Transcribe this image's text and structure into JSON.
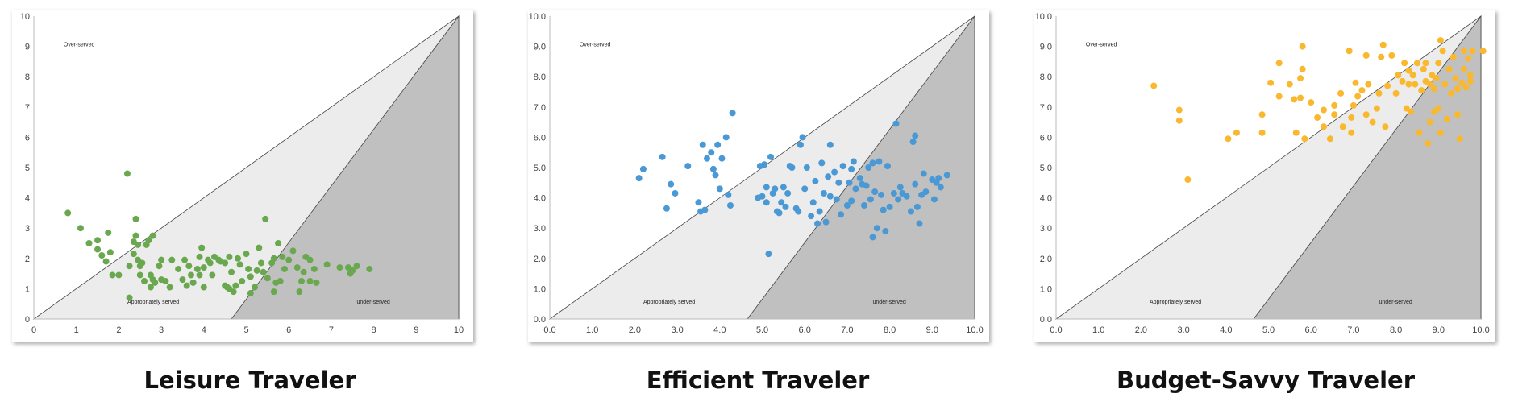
{
  "chart_data": [
    {
      "type": "scatter",
      "title": "Leisure Traveler",
      "color": "#6aa84f",
      "xlim": [
        0,
        10
      ],
      "ylim": [
        0,
        10
      ],
      "xticks": [
        "0",
        "1",
        "2",
        "3",
        "4",
        "5",
        "6",
        "7",
        "8",
        "9",
        "10"
      ],
      "yticks": [
        "0",
        "1",
        "2",
        "3",
        "4",
        "5",
        "6",
        "7",
        "8",
        "9",
        "10"
      ],
      "grid": false,
      "regions": [
        {
          "label": "Over-served",
          "color": "#ffffff"
        },
        {
          "label": "Appropriately served",
          "color": "#ececec"
        },
        {
          "label": "under-served",
          "color": "#c0c0c0"
        }
      ],
      "points": [
        [
          0.8,
          3.5
        ],
        [
          1.1,
          3.0
        ],
        [
          1.3,
          2.5
        ],
        [
          1.5,
          2.3
        ],
        [
          1.6,
          2.1
        ],
        [
          1.5,
          2.6
        ],
        [
          1.7,
          1.9
        ],
        [
          1.75,
          2.85
        ],
        [
          1.8,
          2.2
        ],
        [
          1.85,
          1.45
        ],
        [
          2.0,
          1.45
        ],
        [
          2.2,
          4.8
        ],
        [
          2.25,
          0.7
        ],
        [
          2.25,
          1.75
        ],
        [
          2.35,
          2.55
        ],
        [
          2.35,
          2.15
        ],
        [
          2.4,
          3.3
        ],
        [
          2.4,
          2.75
        ],
        [
          2.45,
          2.45
        ],
        [
          2.45,
          1.95
        ],
        [
          2.5,
          1.75
        ],
        [
          2.5,
          1.45
        ],
        [
          2.55,
          1.85
        ],
        [
          2.6,
          1.25
        ],
        [
          2.65,
          2.45
        ],
        [
          2.7,
          2.6
        ],
        [
          2.75,
          1.05
        ],
        [
          2.75,
          1.45
        ],
        [
          2.8,
          2.75
        ],
        [
          2.8,
          1.3
        ],
        [
          2.85,
          1.2
        ],
        [
          2.95,
          1.75
        ],
        [
          3.0,
          1.3
        ],
        [
          3.0,
          1.95
        ],
        [
          3.1,
          1.25
        ],
        [
          3.2,
          1.05
        ],
        [
          3.25,
          1.95
        ],
        [
          3.4,
          1.65
        ],
        [
          3.5,
          1.3
        ],
        [
          3.55,
          1.95
        ],
        [
          3.6,
          1.1
        ],
        [
          3.65,
          1.75
        ],
        [
          3.7,
          1.45
        ],
        [
          3.75,
          1.2
        ],
        [
          3.85,
          1.65
        ],
        [
          3.9,
          1.45
        ],
        [
          3.9,
          2.05
        ],
        [
          3.95,
          2.35
        ],
        [
          4.0,
          1.7
        ],
        [
          4.0,
          1.05
        ],
        [
          4.1,
          1.95
        ],
        [
          4.15,
          1.85
        ],
        [
          4.2,
          1.45
        ],
        [
          4.25,
          2.05
        ],
        [
          4.35,
          1.95
        ],
        [
          4.4,
          1.9
        ],
        [
          4.5,
          1.1
        ],
        [
          4.5,
          1.85
        ],
        [
          4.55,
          1.05
        ],
        [
          4.6,
          1.0
        ],
        [
          4.6,
          2.05
        ],
        [
          4.65,
          1.55
        ],
        [
          4.7,
          0.9
        ],
        [
          4.75,
          1.1
        ],
        [
          4.8,
          2.0
        ],
        [
          4.85,
          1.8
        ],
        [
          4.9,
          1.25
        ],
        [
          5.0,
          2.15
        ],
        [
          5.05,
          1.65
        ],
        [
          5.1,
          1.4
        ],
        [
          5.1,
          0.85
        ],
        [
          5.2,
          1.05
        ],
        [
          5.25,
          1.6
        ],
        [
          5.3,
          2.35
        ],
        [
          5.35,
          1.85
        ],
        [
          5.4,
          1.55
        ],
        [
          5.45,
          3.3
        ],
        [
          5.5,
          1.35
        ],
        [
          5.6,
          1.85
        ],
        [
          5.65,
          2.0
        ],
        [
          5.65,
          0.9
        ],
        [
          5.7,
          1.2
        ],
        [
          5.75,
          2.5
        ],
        [
          5.8,
          1.25
        ],
        [
          5.85,
          2.05
        ],
        [
          5.9,
          1.65
        ],
        [
          6.0,
          1.95
        ],
        [
          6.1,
          2.25
        ],
        [
          6.2,
          1.7
        ],
        [
          6.25,
          0.9
        ],
        [
          6.3,
          1.25
        ],
        [
          6.35,
          1.55
        ],
        [
          6.4,
          2.05
        ],
        [
          6.5,
          1.95
        ],
        [
          6.5,
          1.25
        ],
        [
          6.6,
          1.65
        ],
        [
          6.65,
          1.2
        ],
        [
          6.9,
          1.8
        ],
        [
          7.2,
          1.7
        ],
        [
          7.4,
          1.7
        ],
        [
          7.45,
          1.5
        ],
        [
          7.5,
          1.6
        ],
        [
          7.6,
          1.75
        ],
        [
          7.9,
          1.65
        ]
      ]
    },
    {
      "type": "scatter",
      "title": "Efficient Traveler",
      "color": "#4a98d4",
      "xlim": [
        0,
        10
      ],
      "ylim": [
        0,
        10
      ],
      "xticks": [
        "0.0",
        "1.0",
        "2.0",
        "3.0",
        "4.0",
        "5.0",
        "6.0",
        "7.0",
        "8.0",
        "9.0",
        "10.0"
      ],
      "yticks": [
        "0.0",
        "1.0",
        "2.0",
        "3.0",
        "4.0",
        "5.0",
        "6.0",
        "7.0",
        "8.0",
        "9.0",
        "10.0"
      ],
      "grid": false,
      "regions": [
        {
          "label": "Over-served",
          "color": "#ffffff"
        },
        {
          "label": "Appropriately served",
          "color": "#ececec"
        },
        {
          "label": "under-served",
          "color": "#c0c0c0"
        }
      ],
      "points": [
        [
          2.1,
          4.65
        ],
        [
          2.2,
          4.95
        ],
        [
          2.65,
          5.35
        ],
        [
          2.75,
          3.65
        ],
        [
          2.85,
          4.45
        ],
        [
          2.95,
          4.15
        ],
        [
          3.25,
          5.05
        ],
        [
          3.5,
          3.85
        ],
        [
          3.55,
          3.55
        ],
        [
          3.6,
          5.75
        ],
        [
          3.65,
          3.6
        ],
        [
          3.7,
          5.3
        ],
        [
          3.8,
          5.5
        ],
        [
          3.85,
          4.95
        ],
        [
          3.9,
          4.75
        ],
        [
          3.95,
          5.75
        ],
        [
          4.0,
          4.3
        ],
        [
          4.05,
          5.3
        ],
        [
          4.15,
          6.0
        ],
        [
          4.2,
          4.1
        ],
        [
          4.25,
          3.75
        ],
        [
          4.3,
          6.8
        ],
        [
          4.9,
          4.0
        ],
        [
          4.95,
          5.05
        ],
        [
          5.0,
          4.05
        ],
        [
          5.05,
          5.1
        ],
        [
          5.1,
          4.35
        ],
        [
          5.1,
          3.85
        ],
        [
          5.15,
          2.15
        ],
        [
          5.2,
          5.35
        ],
        [
          5.25,
          4.15
        ],
        [
          5.3,
          4.3
        ],
        [
          5.35,
          3.55
        ],
        [
          5.4,
          3.5
        ],
        [
          5.45,
          3.85
        ],
        [
          5.5,
          4.35
        ],
        [
          5.55,
          3.7
        ],
        [
          5.6,
          4.15
        ],
        [
          5.65,
          5.05
        ],
        [
          5.7,
          5.0
        ],
        [
          5.8,
          3.65
        ],
        [
          5.85,
          3.55
        ],
        [
          5.9,
          5.75
        ],
        [
          5.95,
          6.0
        ],
        [
          6.0,
          4.3
        ],
        [
          6.05,
          5.0
        ],
        [
          6.15,
          3.4
        ],
        [
          6.2,
          3.85
        ],
        [
          6.25,
          4.55
        ],
        [
          6.3,
          3.15
        ],
        [
          6.35,
          3.55
        ],
        [
          6.4,
          5.15
        ],
        [
          6.45,
          4.15
        ],
        [
          6.5,
          3.2
        ],
        [
          6.55,
          4.7
        ],
        [
          6.6,
          4.05
        ],
        [
          6.6,
          5.75
        ],
        [
          6.7,
          4.85
        ],
        [
          6.75,
          3.95
        ],
        [
          6.8,
          4.5
        ],
        [
          6.85,
          3.45
        ],
        [
          6.9,
          5.05
        ],
        [
          7.0,
          3.75
        ],
        [
          7.05,
          4.5
        ],
        [
          7.1,
          4.95
        ],
        [
          7.1,
          3.9
        ],
        [
          7.15,
          5.2
        ],
        [
          7.2,
          4.3
        ],
        [
          7.3,
          4.65
        ],
        [
          7.35,
          4.45
        ],
        [
          7.4,
          3.75
        ],
        [
          7.45,
          4.4
        ],
        [
          7.5,
          5.0
        ],
        [
          7.55,
          3.95
        ],
        [
          7.6,
          2.7
        ],
        [
          7.6,
          5.15
        ],
        [
          7.65,
          4.2
        ],
        [
          7.7,
          3.0
        ],
        [
          7.75,
          5.2
        ],
        [
          7.8,
          4.1
        ],
        [
          7.85,
          3.6
        ],
        [
          7.9,
          2.9
        ],
        [
          7.95,
          5.05
        ],
        [
          8.0,
          3.7
        ],
        [
          8.1,
          4.15
        ],
        [
          8.15,
          6.45
        ],
        [
          8.2,
          3.95
        ],
        [
          8.25,
          4.35
        ],
        [
          8.3,
          4.15
        ],
        [
          8.4,
          4.05
        ],
        [
          8.5,
          3.55
        ],
        [
          8.55,
          5.85
        ],
        [
          8.6,
          6.05
        ],
        [
          8.6,
          4.45
        ],
        [
          8.65,
          3.7
        ],
        [
          8.7,
          3.15
        ],
        [
          8.75,
          4.1
        ],
        [
          8.8,
          4.8
        ],
        [
          8.85,
          4.2
        ],
        [
          9.0,
          4.6
        ],
        [
          9.05,
          3.95
        ],
        [
          9.1,
          4.5
        ],
        [
          9.15,
          4.65
        ],
        [
          9.2,
          4.35
        ],
        [
          9.35,
          4.75
        ]
      ]
    },
    {
      "type": "scatter",
      "title": "Budget-Savvy Traveler",
      "color": "#f9b82e",
      "xlim": [
        0,
        10
      ],
      "ylim": [
        0,
        10
      ],
      "xticks": [
        "0.0",
        "1.0",
        "2.0",
        "3.0",
        "4.0",
        "5.0",
        "6.0",
        "7.0",
        "8.0",
        "9.0",
        "10.0"
      ],
      "yticks": [
        "0.0",
        "1.0",
        "2.0",
        "3.0",
        "4.0",
        "5.0",
        "6.0",
        "7.0",
        "8.0",
        "9.0",
        "10.0"
      ],
      "grid": false,
      "regions": [
        {
          "label": "Over-served",
          "color": "#ffffff"
        },
        {
          "label": "Appropriately served",
          "color": "#ececec"
        },
        {
          "label": "under-served",
          "color": "#c0c0c0"
        }
      ],
      "points": [
        [
          2.3,
          7.7
        ],
        [
          2.9,
          6.9
        ],
        [
          2.9,
          6.55
        ],
        [
          3.1,
          4.6
        ],
        [
          4.05,
          5.95
        ],
        [
          4.25,
          6.15
        ],
        [
          4.85,
          6.15
        ],
        [
          4.85,
          6.75
        ],
        [
          5.05,
          7.8
        ],
        [
          5.25,
          7.35
        ],
        [
          5.25,
          8.45
        ],
        [
          5.5,
          7.75
        ],
        [
          5.6,
          7.25
        ],
        [
          5.65,
          6.15
        ],
        [
          5.75,
          7.3
        ],
        [
          5.75,
          7.95
        ],
        [
          5.8,
          9.0
        ],
        [
          5.8,
          8.25
        ],
        [
          5.85,
          5.95
        ],
        [
          6.0,
          7.15
        ],
        [
          6.15,
          6.65
        ],
        [
          6.3,
          6.35
        ],
        [
          6.3,
          6.9
        ],
        [
          6.45,
          5.95
        ],
        [
          6.55,
          6.75
        ],
        [
          6.55,
          7.05
        ],
        [
          6.7,
          7.45
        ],
        [
          6.75,
          6.35
        ],
        [
          6.9,
          8.85
        ],
        [
          6.95,
          6.15
        ],
        [
          6.95,
          6.65
        ],
        [
          7.0,
          7.05
        ],
        [
          7.05,
          7.8
        ],
        [
          7.1,
          7.35
        ],
        [
          7.2,
          7.55
        ],
        [
          7.3,
          6.75
        ],
        [
          7.3,
          8.7
        ],
        [
          7.35,
          7.75
        ],
        [
          7.45,
          6.5
        ],
        [
          7.55,
          6.95
        ],
        [
          7.6,
          7.45
        ],
        [
          7.65,
          8.65
        ],
        [
          7.7,
          9.05
        ],
        [
          7.75,
          6.35
        ],
        [
          7.8,
          7.7
        ],
        [
          7.9,
          8.7
        ],
        [
          8.0,
          7.45
        ],
        [
          8.05,
          8.05
        ],
        [
          8.15,
          7.85
        ],
        [
          8.2,
          8.45
        ],
        [
          8.25,
          6.95
        ],
        [
          8.3,
          7.75
        ],
        [
          8.3,
          8.2
        ],
        [
          8.35,
          6.85
        ],
        [
          8.4,
          8.05
        ],
        [
          8.45,
          7.75
        ],
        [
          8.5,
          8.45
        ],
        [
          8.55,
          6.15
        ],
        [
          8.6,
          7.55
        ],
        [
          8.65,
          8.25
        ],
        [
          8.7,
          7.85
        ],
        [
          8.7,
          8.45
        ],
        [
          8.75,
          5.8
        ],
        [
          8.8,
          7.75
        ],
        [
          8.8,
          6.5
        ],
        [
          8.85,
          8.05
        ],
        [
          8.9,
          6.85
        ],
        [
          8.9,
          7.6
        ],
        [
          8.95,
          7.95
        ],
        [
          9.0,
          8.45
        ],
        [
          9.0,
          6.95
        ],
        [
          9.05,
          9.2
        ],
        [
          9.05,
          6.15
        ],
        [
          9.1,
          8.85
        ],
        [
          9.15,
          7.75
        ],
        [
          9.2,
          6.6
        ],
        [
          9.25,
          8.25
        ],
        [
          9.3,
          7.45
        ],
        [
          9.35,
          8.65
        ],
        [
          9.4,
          7.95
        ],
        [
          9.45,
          7.6
        ],
        [
          9.45,
          6.75
        ],
        [
          9.5,
          5.95
        ],
        [
          9.55,
          7.8
        ],
        [
          9.6,
          8.25
        ],
        [
          9.6,
          8.85
        ],
        [
          9.65,
          7.65
        ],
        [
          9.7,
          8.6
        ],
        [
          9.75,
          7.85
        ],
        [
          9.75,
          8.05
        ],
        [
          9.8,
          8.85
        ],
        [
          10.05,
          8.85
        ]
      ]
    }
  ],
  "titles": [
    "Leisure Traveler",
    "Efficient Traveler",
    "Budget-Savvy Traveler"
  ]
}
